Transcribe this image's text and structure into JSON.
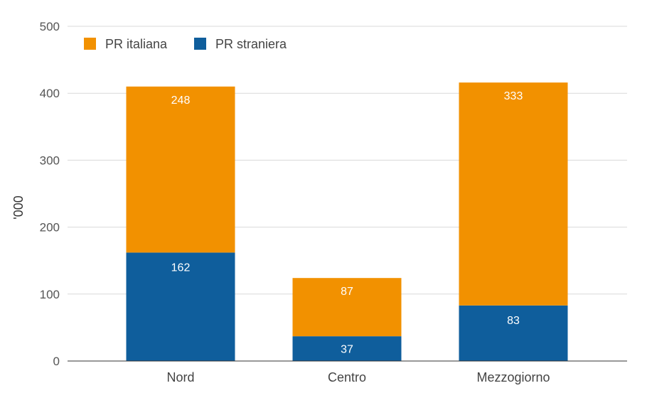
{
  "chart_data": {
    "type": "bar",
    "stacked": true,
    "categories": [
      "Nord",
      "Centro",
      "Mezzogiorno"
    ],
    "series": [
      {
        "name": "PR straniera",
        "values": [
          162,
          37,
          83
        ],
        "color": "#0f5e9c"
      },
      {
        "name": "PR italiana",
        "values": [
          248,
          87,
          333
        ],
        "color": "#f29100"
      }
    ],
    "title": "",
    "xlabel": "",
    "ylabel": "'000",
    "ylim": [
      0,
      500
    ],
    "yticks": [
      0,
      100,
      200,
      300,
      400,
      500
    ],
    "grid": true,
    "legend": "top-left"
  }
}
